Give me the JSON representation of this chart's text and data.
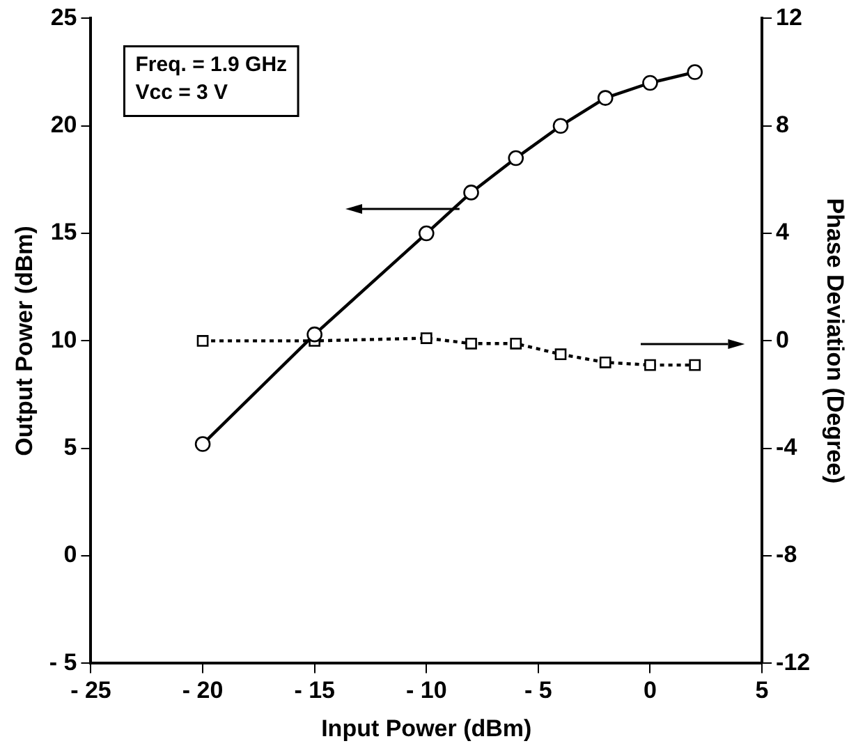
{
  "chart_data": {
    "type": "line",
    "xlabel": "Input Power (dBm)",
    "ylabel": "Output Power (dBm)",
    "y2label": "Phase Deviation (Degree)",
    "x": [
      -20,
      -15,
      -10,
      -8,
      -6,
      -4,
      -2,
      0,
      2
    ],
    "series": [
      {
        "color": "#000000",
        "marker": "circle",
        "line_style": "solid",
        "values": [
          5.2,
          10.3,
          15,
          16.9,
          18.5,
          20,
          21.3,
          22,
          22.5
        ]
      },
      {
        "color": "#000000",
        "marker": "square",
        "line_style": "dotted",
        "axis": "y2",
        "values": [
          0,
          0,
          0.1,
          -0.1,
          -0.1,
          -0.5,
          -0.8,
          -0.9,
          -0.9
        ]
      }
    ],
    "xlim": [
      -25,
      5
    ],
    "xticks": [
      -25,
      -20,
      -15,
      -10,
      -5,
      0,
      5
    ],
    "ylim": [
      -5,
      25
    ],
    "yticks": [
      -5,
      0,
      5,
      10,
      15,
      20,
      25
    ],
    "y2lim": [
      -12,
      12
    ],
    "y2ticks": [
      -12,
      -8,
      -4,
      0,
      4,
      8,
      12
    ],
    "annotations": [
      "Freq. = 1.9 GHz",
      "Vcc = 3 V"
    ],
    "grid": false,
    "legend": false
  }
}
